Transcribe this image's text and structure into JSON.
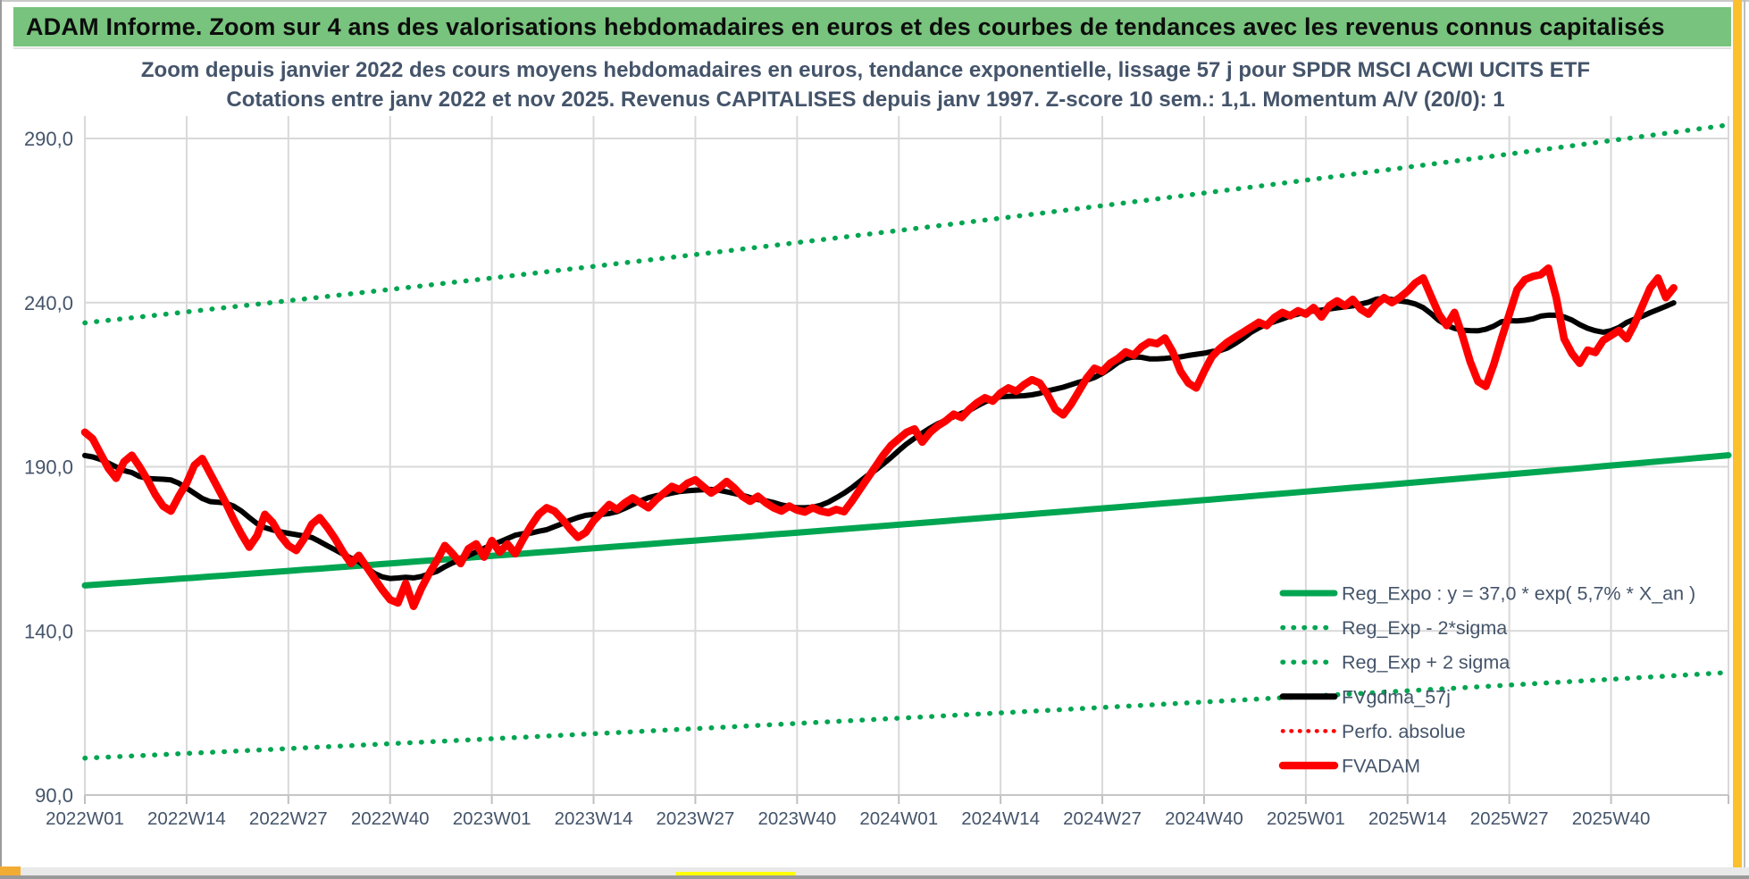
{
  "window": {
    "header_title": "ADAM Informe. Zoom sur 4 ans des valorisations hebdomadaires en euros et des courbes de tendances avec les revenus connus capitalisés",
    "header_bg_color": "#78c37d",
    "selection_accent_color": "#fcc02c"
  },
  "chart": {
    "title_line1": "Zoom depuis janvier 2022 des cours moyens hebdomadaires en euros, tendance exponentielle, lissage 57 j pour SPDR MSCI ACWI UCITS ETF",
    "title_line2": "Cotations entre janv 2022 et nov 2025. Revenus CAPITALISES depuis janv 1997. Z-score 10 sem.: 1,1. Momentum A/V (20/0): 1",
    "title_color": "#44546a",
    "gridline_color": "#d9d9d9",
    "axis_label_color": "#44546a"
  },
  "chart_data": {
    "type": "line",
    "title": "Zoom depuis janvier 2022 des cours moyens hebdomadaires en euros, tendance exponentielle, lissage 57 j pour SPDR MSCI ACWI UCITS ETF",
    "subtitle": "Cotations entre janv 2022 et nov 2025. Revenus CAPITALISES depuis janv 1997. Z-score 10 sem.: 1,1. Momentum A/V (20/0): 1",
    "grid": true,
    "legend_position": "bottom-right",
    "y_axis": {
      "tick_labels": [
        "290,0",
        "240,0",
        "190,0",
        "140,0",
        "90,0"
      ],
      "tick_values": [
        290,
        240,
        190,
        140,
        90
      ],
      "min": 90,
      "max": 297
    },
    "x_axis": {
      "tick_labels": [
        "2022W01",
        "2022W14",
        "2022W27",
        "2022W40",
        "2023W01",
        "2023W14",
        "2023W27",
        "2023W40",
        "2024W01",
        "2024W14",
        "2024W27",
        "2024W40",
        "2025W01",
        "2025W14",
        "2025W27",
        "2025W40"
      ],
      "weeks_per_tick": 13,
      "axis_total_weeks": 210,
      "first_week": "2022W01",
      "last_data_week": "2025W48"
    },
    "series": [
      {
        "name": "Reg_Expo : y = 37,0 * exp( 5,7% *  X_an )",
        "kind": "trend_exponential",
        "color": "#00a551",
        "style": "solid",
        "width": 7,
        "formula": {
          "a": 37.0,
          "annual_rate": 0.057,
          "years_since_1997_at_x0": 25.0
        }
      },
      {
        "name": "Reg_Exp - 2*sigma",
        "kind": "trend_band",
        "color": "#00a551",
        "style": "dotted",
        "width": 5.5,
        "band_factor": 0.658
      },
      {
        "name": "Reg_Exp + 2 sigma",
        "kind": "trend_band",
        "color": "#00a551",
        "style": "dotted",
        "width": 5.5,
        "band_factor": 1.52
      },
      {
        "name": "FVgdma_57j",
        "kind": "moving_average_of_FVADAM",
        "color": "#000000",
        "style": "solid",
        "width": 6,
        "window_weeks": 13
      },
      {
        "name": "Perfo. absolue",
        "kind": "hidden_behind_FVADAM",
        "color": "#ff0000",
        "style": "dotted",
        "width": 4.5,
        "visible_in_plot": false
      },
      {
        "name": "FVADAM",
        "kind": "weekly_values",
        "color": "#ff0000",
        "style": "solid",
        "width": 8.5,
        "start_week": "2022W01",
        "values": [
          200.5,
          198.5,
          194,
          189.5,
          186.5,
          191.5,
          193.5,
          190,
          186,
          181.5,
          178,
          176.5,
          181,
          185,
          190.5,
          192.5,
          188,
          183.5,
          179,
          174,
          169.5,
          165.5,
          169,
          175.5,
          173,
          169,
          166,
          164.5,
          168,
          172.5,
          174.5,
          171.5,
          168,
          164,
          160.5,
          163,
          159.5,
          156,
          152.5,
          149.5,
          148.5,
          154.5,
          147.5,
          153,
          157.5,
          161.5,
          166,
          163.5,
          160.5,
          165,
          166.5,
          162.5,
          167.5,
          164,
          166.5,
          163.5,
          168,
          172,
          175.5,
          177.5,
          176.5,
          174,
          171,
          168.5,
          170,
          173.5,
          176,
          178.5,
          177,
          179,
          180.5,
          179,
          177.5,
          180,
          182,
          184,
          183,
          185,
          186,
          184,
          182,
          183.5,
          185.5,
          183.5,
          181,
          179.5,
          181,
          179,
          177.5,
          176.5,
          178,
          176.8,
          176.2,
          177.5,
          176.5,
          176,
          177,
          176.3,
          179.5,
          183,
          186.5,
          190,
          193.5,
          196.5,
          198.5,
          200.5,
          201.5,
          197.5,
          200.5,
          202.5,
          204,
          206,
          205,
          207.5,
          209.5,
          211,
          210,
          212.5,
          214,
          213,
          215,
          216.5,
          215.5,
          212,
          207.5,
          205.8,
          209,
          213,
          217,
          220,
          219,
          221.5,
          223,
          225,
          224,
          226.5,
          228,
          227.5,
          229.2,
          225,
          219,
          215.5,
          214,
          219,
          223.5,
          226,
          228,
          229.5,
          231,
          232.5,
          234,
          233,
          235.5,
          237,
          236,
          237.5,
          236.5,
          238.5,
          235.6,
          239,
          240.5,
          239,
          241,
          238,
          236.5,
          239.5,
          241.5,
          240,
          241.5,
          243.5,
          246,
          247.5,
          242,
          236.5,
          233,
          237,
          230,
          222,
          216,
          214.5,
          221,
          229,
          236.5,
          244,
          247,
          248,
          248.5,
          250.5,
          241.5,
          229,
          224.5,
          221.5,
          225.5,
          224.8,
          228.5,
          230,
          231.5,
          229,
          233.5,
          239,
          244.5,
          247.5,
          241.5,
          244.5
        ]
      }
    ]
  },
  "status_bar": {}
}
